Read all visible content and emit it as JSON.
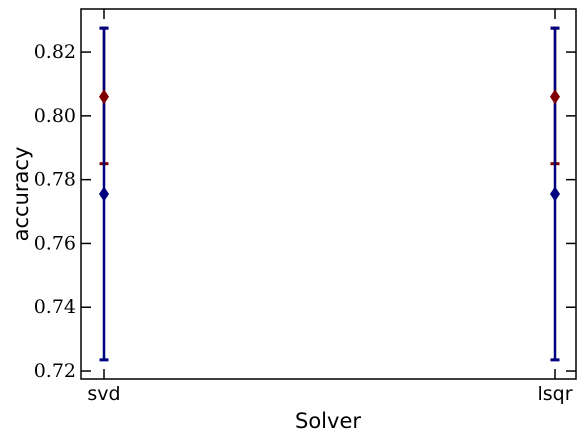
{
  "chart_data": {
    "type": "scatter",
    "title": "",
    "xlabel": "Solver",
    "ylabel": "accuracy",
    "categories": [
      "svd",
      "lsqr"
    ],
    "ylim": [
      0.7175,
      0.8335
    ],
    "yticks": [
      "0.72",
      "0.74",
      "0.76",
      "0.78",
      "0.80",
      "0.82"
    ],
    "grid": false,
    "legend": false,
    "series": [
      {
        "color": "#00007f",
        "marker": "diamond",
        "values": [
          0.7755,
          0.7755
        ],
        "lower": [
          0.7235,
          0.7235
        ],
        "upper": [
          0.8275,
          0.8275
        ]
      },
      {
        "color": "#7f0000",
        "marker": "diamond",
        "values": [
          0.806,
          0.806
        ],
        "lower": [
          0.785,
          0.785
        ],
        "upper": [
          0.8275,
          0.8275
        ]
      }
    ]
  }
}
